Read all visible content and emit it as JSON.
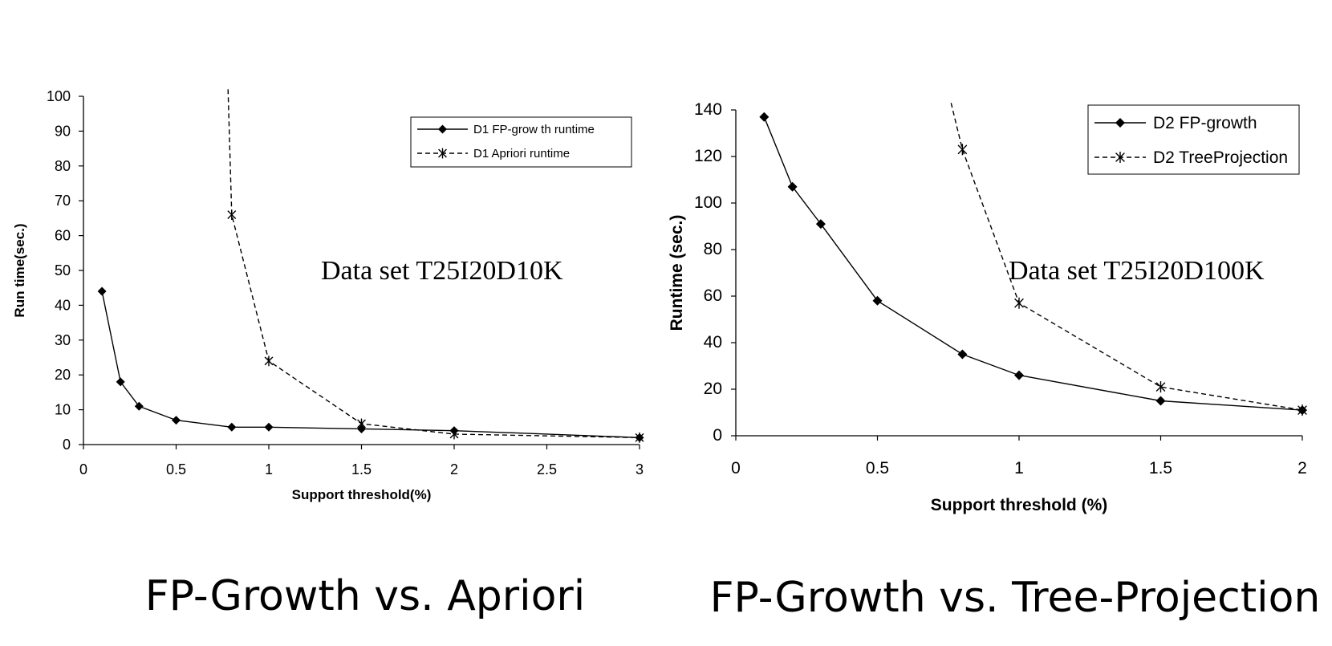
{
  "chart_data": [
    {
      "type": "line",
      "title": "FP-Growth vs. Apriori",
      "annotation": "Data set T25I20D10K",
      "xlabel": "Support threshold(%)",
      "ylabel": "Run time(sec.)",
      "xlim": [
        0,
        3
      ],
      "ylim": [
        0,
        100
      ],
      "xticks": [
        "0",
        "0.5",
        "1",
        "1.5",
        "2",
        "2.5",
        "3"
      ],
      "yticks": [
        "0",
        "10",
        "20",
        "30",
        "40",
        "50",
        "60",
        "70",
        "80",
        "90",
        "100"
      ],
      "grid": false,
      "legend_position": "top-right",
      "series": [
        {
          "name": "D1 FP-grow th runtime",
          "style": "solid",
          "marker": "diamond",
          "x": [
            0.1,
            0.2,
            0.3,
            0.5,
            0.8,
            1,
            1.5,
            2,
            3
          ],
          "y": [
            44,
            18,
            11,
            7,
            5,
            5,
            4.5,
            4,
            2
          ]
        },
        {
          "name": "D1 Apriori runtime",
          "style": "dashed",
          "marker": "asterisk",
          "x": [
            0.78,
            0.8,
            1,
            1.5,
            2,
            3
          ],
          "y": [
            102,
            66,
            24,
            6,
            3,
            2
          ],
          "marked_points": [
            1,
            2,
            3,
            4,
            5
          ]
        }
      ]
    },
    {
      "type": "line",
      "title": "FP-Growth vs. Tree-Projection",
      "annotation": "Data set T25I20D100K",
      "xlabel": "Support threshold (%)",
      "ylabel": "Runtime (sec.)",
      "xlim": [
        0,
        2
      ],
      "ylim": [
        0,
        140
      ],
      "xticks": [
        "0",
        "0.5",
        "1",
        "1.5",
        "2"
      ],
      "yticks": [
        "0",
        "20",
        "40",
        "60",
        "80",
        "100",
        "120",
        "140"
      ],
      "grid": false,
      "legend_position": "top-right",
      "series": [
        {
          "name": "D2 FP-growth",
          "style": "solid",
          "marker": "diamond",
          "x": [
            0.1,
            0.2,
            0.3,
            0.5,
            0.8,
            1,
            1.5,
            2
          ],
          "y": [
            137,
            107,
            91,
            58,
            35,
            26,
            15,
            11
          ]
        },
        {
          "name": "D2 TreeProjection",
          "style": "dashed",
          "marker": "asterisk",
          "x": [
            0.76,
            0.8,
            1,
            1.5,
            2
          ],
          "y": [
            143,
            123,
            57,
            21,
            11
          ],
          "marked_points": [
            1,
            2,
            3,
            4
          ]
        }
      ]
    }
  ]
}
